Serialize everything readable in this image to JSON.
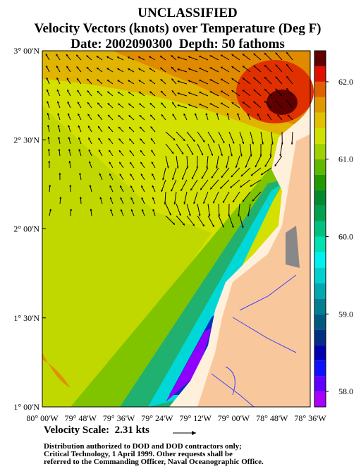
{
  "header": {
    "classification": "UNCLASSIFIED",
    "title": "Velocity Vectors (knots) over Temperature (Deg F)",
    "subtitle": "Date: 2002090300  Depth: 50 fathoms"
  },
  "map": {
    "lat_labels": [
      "3° 00'N",
      "2° 30'N",
      "2° 00'N",
      "1° 30'N",
      "1° 00'N"
    ],
    "lon_labels": [
      "80° 00'W",
      "79° 48'W",
      "79° 36'W",
      "79° 24'W",
      "79° 12'W",
      "79° 00'W",
      "78° 48'W",
      "78° 36'W"
    ]
  },
  "colorbar": {
    "range": [
      57.8,
      62.4
    ],
    "colors": [
      "#a800ff",
      "#6000ff",
      "#1010ff",
      "#0000b0",
      "#003080",
      "#005a80",
      "#008090",
      "#00a8b0",
      "#00d0d0",
      "#00f0f0",
      "#00e0b0",
      "#00c080",
      "#00a050",
      "#008a30",
      "#209a00",
      "#60b800",
      "#a0d000",
      "#d0e000",
      "#e0c000",
      "#e09800",
      "#e06000",
      "#e01000",
      "#600000"
    ],
    "ticks": [
      {
        "value": 58,
        "label": "58.0"
      },
      {
        "value": 59,
        "label": "59.0"
      },
      {
        "value": 60,
        "label": "60.0"
      },
      {
        "value": 61,
        "label": "61.0"
      },
      {
        "value": 62,
        "label": "62.0"
      }
    ]
  },
  "legend": {
    "velocity_scale": "Velocity Scale:  2.31 kts"
  },
  "footer": {
    "lines": [
      "Distribution authorized to DOD and DOD contractors only;",
      "Critical Technology, 1 April 1999.  Other requests shall be",
      "referred to the Commanding Officer, Naval Oceanographic Office."
    ]
  }
}
